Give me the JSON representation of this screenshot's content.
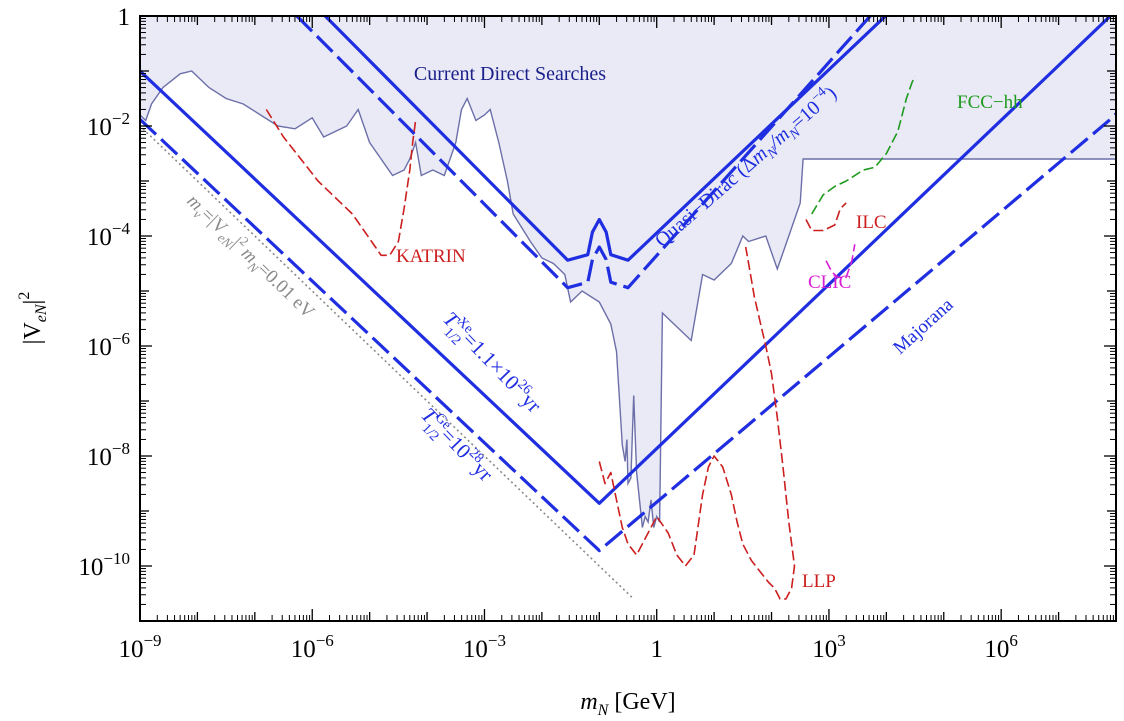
{
  "chart_data": {
    "type": "line",
    "title": "",
    "xlabel": "m_N [GeV]",
    "ylabel": "|V_eN|^2",
    "xscale": "log",
    "yscale": "log",
    "xlim": [
      1e-09,
      100000000.0
    ],
    "ylim": [
      1e-11,
      1
    ],
    "grid": false,
    "x_ticks": [
      {
        "base": "10",
        "exp": "−9",
        "value": -9
      },
      {
        "base": "10",
        "exp": "−6",
        "value": -6
      },
      {
        "base": "10",
        "exp": "−3",
        "value": -3
      },
      {
        "base": "1",
        "exp": "",
        "value": 0
      },
      {
        "base": "10",
        "exp": "3",
        "value": 3
      },
      {
        "base": "10",
        "exp": "6",
        "value": 6
      }
    ],
    "y_ticks": [
      {
        "base": "1",
        "exp": "",
        "value": 0
      },
      {
        "base": "10",
        "exp": "−2",
        "value": -2
      },
      {
        "base": "10",
        "exp": "−4",
        "value": -4
      },
      {
        "base": "10",
        "exp": "−6",
        "value": -6
      },
      {
        "base": "10",
        "exp": "−8",
        "value": -8
      },
      {
        "base": "10",
        "exp": "−10",
        "value": -10
      }
    ],
    "colors": {
      "bound": "#1f2ee0",
      "region_fill": "#e9eaf6",
      "region_line": "#6c6fa8",
      "katrin": "#cc1f1f",
      "fcc": "#1f9a1f",
      "clic": "#d81fd8",
      "reference": "#8a8a8a"
    },
    "exclusion_region": {
      "name": "Current Direct Searches",
      "points": [
        [
          -9.4,
          -2.4
        ],
        [
          -9.2,
          -2.0
        ],
        [
          -9.1,
          -2.2
        ],
        [
          -9,
          -1.8
        ],
        [
          -8.9,
          -1.9
        ],
        [
          -8.8,
          -1.6
        ],
        [
          -8.6,
          -1.3
        ],
        [
          -8.3,
          -1.05
        ],
        [
          -8.1,
          -1.0
        ],
        [
          -7.8,
          -1.3
        ],
        [
          -7.5,
          -1.5
        ],
        [
          -7.2,
          -1.6
        ],
        [
          -6.9,
          -1.8
        ],
        [
          -6.6,
          -2.0
        ],
        [
          -6.3,
          -2.05
        ],
        [
          -6.0,
          -1.85
        ],
        [
          -5.8,
          -2.2
        ],
        [
          -5.4,
          -2.0
        ],
        [
          -5.2,
          -1.7
        ],
        [
          -5.0,
          -2.3
        ],
        [
          -4.8,
          -2.6
        ],
        [
          -4.6,
          -2.9
        ],
        [
          -4.4,
          -2.8
        ],
        [
          -4.3,
          -2.6
        ],
        [
          -4.2,
          -2.3
        ],
        [
          -4.1,
          -2.9
        ],
        [
          -3.9,
          -2.8
        ],
        [
          -3.7,
          -2.9
        ],
        [
          -3.5,
          -2.3
        ],
        [
          -3.4,
          -1.7
        ],
        [
          -3.3,
          -1.5
        ],
        [
          -3.15,
          -1.9
        ],
        [
          -3.0,
          -1.8
        ],
        [
          -2.9,
          -1.7
        ],
        [
          -2.75,
          -2.3
        ],
        [
          -2.6,
          -3.0
        ],
        [
          -2.5,
          -3.6
        ],
        [
          -2.2,
          -4.1
        ],
        [
          -2.0,
          -4.4
        ],
        [
          -1.8,
          -4.5
        ],
        [
          -1.6,
          -4.7
        ],
        [
          -1.5,
          -5.2
        ],
        [
          -1.3,
          -5.0
        ],
        [
          -1.0,
          -5.2
        ],
        [
          -0.8,
          -5.6
        ],
        [
          -0.7,
          -6.1
        ],
        [
          -0.6,
          -7.8
        ],
        [
          -0.55,
          -8.1
        ],
        [
          -0.52,
          -7.7
        ],
        [
          -0.5,
          -8.5
        ],
        [
          -0.45,
          -8.4
        ],
        [
          -0.4,
          -6.9
        ],
        [
          -0.35,
          -8.3
        ],
        [
          -0.3,
          -8.8
        ],
        [
          -0.25,
          -9.3
        ],
        [
          -0.2,
          -9.1
        ],
        [
          -0.15,
          -9.2
        ],
        [
          -0.1,
          -8.8
        ],
        [
          -0.05,
          -9.3
        ],
        [
          0.0,
          -9.1
        ],
        [
          0.05,
          -9.2
        ],
        [
          0.1,
          -5.4
        ],
        [
          0.3,
          -5.6
        ],
        [
          0.6,
          -5.9
        ],
        [
          0.8,
          -4.7
        ],
        [
          1.0,
          -4.8
        ],
        [
          1.3,
          -4.5
        ],
        [
          1.5,
          -4.0
        ],
        [
          1.6,
          -4.1
        ],
        [
          1.9,
          -4.0
        ],
        [
          2.1,
          -4.6
        ],
        [
          2.3,
          -4.0
        ],
        [
          2.5,
          -3.4
        ],
        [
          2.55,
          -2.6
        ],
        [
          2.6,
          -2.6
        ],
        [
          8.0,
          -2.6
        ]
      ]
    },
    "series": [
      {
        "name": "Quasi−Dirac (Δm_N/m_N=10^−4)",
        "style": "solid",
        "points": [
          [
            -7.2,
            1.5
          ],
          [
            -1.55,
            -4.44
          ],
          [
            -1.2,
            -4.34
          ],
          [
            -1.12,
            -3.93
          ],
          [
            -1.0,
            -3.7
          ],
          [
            -0.88,
            -3.93
          ],
          [
            -0.8,
            -4.34
          ],
          [
            -0.5,
            -4.44
          ],
          [
            5.5,
            1.5
          ]
        ]
      },
      {
        "name": "",
        "style": "dashed",
        "points": [
          [
            -7.7,
            1.5
          ],
          [
            -1.55,
            -4.94
          ],
          [
            -1.2,
            -4.84
          ],
          [
            -1.12,
            -4.43
          ],
          [
            -1.0,
            -4.2
          ],
          [
            -0.88,
            -4.43
          ],
          [
            -0.8,
            -4.84
          ],
          [
            -0.5,
            -4.94
          ],
          [
            5.0,
            1.5
          ]
        ]
      },
      {
        "name": "T_1/2^Xe=1.1×10^26 yr",
        "style": "solid",
        "points": [
          [
            -9.0,
            -1.0
          ],
          [
            -1.0,
            -8.86
          ],
          [
            6.9,
            -1.0
          ],
          [
            8.0,
            0.1
          ]
        ]
      },
      {
        "name": "T_1/2^Ge=10^28 yr",
        "style": "dashed",
        "points": [
          [
            -9.0,
            -1.88
          ],
          [
            -1.0,
            -9.72
          ],
          [
            7.9,
            -1.88
          ],
          [
            8.0,
            -1.78
          ]
        ]
      },
      {
        "name": "Majorana",
        "style": "label",
        "points": []
      },
      {
        "name": "KATRIN",
        "style": "dashed",
        "color": "katrin",
        "points": [
          [
            -6.8,
            -1.7
          ],
          [
            -6.5,
            -2.2
          ],
          [
            -6.2,
            -2.6
          ],
          [
            -5.9,
            -3.0
          ],
          [
            -5.6,
            -3.3
          ],
          [
            -5.3,
            -3.6
          ],
          [
            -5.1,
            -3.9
          ],
          [
            -4.9,
            -4.2
          ],
          [
            -4.8,
            -4.35
          ],
          [
            -4.65,
            -4.35
          ],
          [
            -4.5,
            -4.1
          ],
          [
            -4.4,
            -3.5
          ],
          [
            -4.3,
            -2.8
          ],
          [
            -4.25,
            -2.3
          ],
          [
            -4.2,
            -1.9
          ]
        ]
      },
      {
        "name": "LLP",
        "style": "dashed",
        "color": "katrin",
        "points": [
          [
            -1.0,
            -8.1
          ],
          [
            -0.9,
            -8.5
          ],
          [
            -0.8,
            -8.3
          ],
          [
            -0.7,
            -8.8
          ],
          [
            -0.6,
            -9.3
          ],
          [
            -0.5,
            -9.6
          ],
          [
            -0.35,
            -9.8
          ],
          [
            -0.2,
            -9.5
          ],
          [
            0.0,
            -9.1
          ],
          [
            0.2,
            -9.4
          ],
          [
            0.35,
            -9.8
          ],
          [
            0.5,
            -10.0
          ],
          [
            0.65,
            -9.8
          ],
          [
            0.8,
            -8.7
          ],
          [
            0.9,
            -8.2
          ],
          [
            1.0,
            -8.0
          ],
          [
            1.15,
            -8.2
          ],
          [
            1.3,
            -8.7
          ],
          [
            1.4,
            -9.2
          ],
          [
            1.5,
            -9.6
          ],
          [
            1.65,
            -9.9
          ],
          [
            1.8,
            -10.1
          ],
          [
            1.95,
            -10.3
          ],
          [
            2.05,
            -10.4
          ],
          [
            2.15,
            -10.6
          ],
          [
            2.25,
            -10.6
          ],
          [
            2.35,
            -10.4
          ],
          [
            2.4,
            -10.0
          ],
          [
            2.3,
            -9.2
          ],
          [
            2.2,
            -8.2
          ],
          [
            2.1,
            -7.3
          ],
          [
            2.0,
            -6.5
          ],
          [
            1.9,
            -6.0
          ],
          [
            1.8,
            -5.55
          ],
          [
            1.7,
            -5.1
          ],
          [
            1.6,
            -4.5
          ],
          [
            1.55,
            -4.2
          ]
        ]
      },
      {
        "name": "ILC",
        "style": "dashed",
        "color": "katrin",
        "points": [
          [
            2.6,
            -3.7
          ],
          [
            2.7,
            -3.9
          ],
          [
            2.9,
            -3.9
          ],
          [
            3.1,
            -3.8
          ],
          [
            3.2,
            -3.5
          ],
          [
            3.3,
            -3.4
          ]
        ]
      },
      {
        "name": "CLIC",
        "style": "dashed",
        "color": "clic",
        "points": [
          [
            2.95,
            -4.45
          ],
          [
            3.05,
            -4.65
          ],
          [
            3.15,
            -4.75
          ],
          [
            3.3,
            -4.75
          ],
          [
            3.4,
            -4.45
          ],
          [
            3.45,
            -4.15
          ]
        ]
      },
      {
        "name": "FCC−hh",
        "style": "dashed",
        "color": "fcc",
        "points": [
          [
            2.7,
            -3.6
          ],
          [
            2.9,
            -3.25
          ],
          [
            3.1,
            -3.1
          ],
          [
            3.3,
            -3.0
          ],
          [
            3.6,
            -2.8
          ],
          [
            3.8,
            -2.75
          ],
          [
            4.0,
            -2.5
          ],
          [
            4.2,
            -2.1
          ],
          [
            4.35,
            -1.5
          ],
          [
            4.45,
            -1.2
          ],
          [
            4.5,
            -1.1
          ]
        ]
      },
      {
        "name": "m_ν=|V_eN|^2 m_N=0.01 eV",
        "style": "dotted",
        "color": "reference",
        "points": [
          [
            -9.2,
            -1.8
          ],
          [
            -0.4,
            -10.6
          ]
        ]
      }
    ],
    "annotations": {
      "current": "Current Direct Searches",
      "quasi_dirac": "Quasi−Dirac (Δ",
      "quasi_dirac_mid": "m",
      "quasi_dirac_sub": "N",
      "quasi_dirac_slash": "/m",
      "quasi_dirac_eq": "=10",
      "quasi_dirac_exp": "−4",
      "quasi_dirac_close": ")",
      "xe_T": "T",
      "xe_sup": "Xe",
      "xe_sub": "1/2",
      "xe_val": "=1.1×10",
      "xe_exp": "26",
      "xe_unit": "yr",
      "ge_T": "T",
      "ge_sup": "Ge",
      "ge_sub": "1/2",
      "ge_val": "=10",
      "ge_exp": "28",
      "ge_unit": "yr",
      "majorana": "Majorana",
      "katrin": "KATRIN",
      "llp": "LLP",
      "ilc": "ILC",
      "clic": "CLIC",
      "fcc": "FCC−hh",
      "ref_m": "m",
      "ref_nu": "ν",
      "ref_eq": "=|V",
      "ref_eN": "eN",
      "ref_sq": "|",
      "ref_two": "2",
      "ref_mN": "m",
      "ref_N": "N",
      "ref_val": "=0.01 eV"
    },
    "axis_labels": {
      "x_main": "m",
      "x_sub": "N",
      "x_unit": " [GeV]",
      "y_bar1": "|V",
      "y_sub": "eN",
      "y_bar2": "|",
      "y_exp": "2"
    }
  }
}
